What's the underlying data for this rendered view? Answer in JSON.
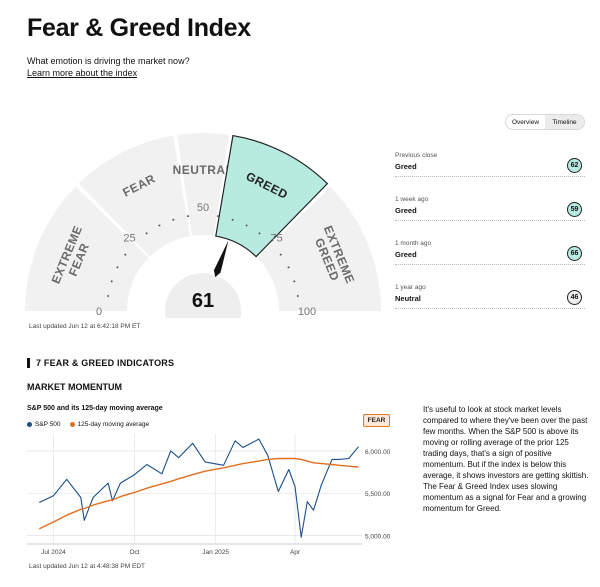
{
  "page": {
    "title": "Fear & Greed Index",
    "subtitle": "What emotion is driving the market now?",
    "learn_more": "Learn more about the index"
  },
  "toggle": {
    "options": [
      "Overview",
      "Timeline"
    ],
    "selected": "Timeline"
  },
  "gauge": {
    "value": 61,
    "segments": [
      {
        "label": [
          "EXTREME",
          "FEAR"
        ],
        "from": 0,
        "to": 25
      },
      {
        "label": [
          "FEAR"
        ],
        "from": 25,
        "to": 45
      },
      {
        "label": [
          "NEUTRAL"
        ],
        "from": 45,
        "to": 55
      },
      {
        "label": [
          "GREED"
        ],
        "from": 55,
        "to": 75
      },
      {
        "label": [
          "EXTREME",
          "GREED"
        ],
        "from": 75,
        "to": 100
      }
    ],
    "active_segment": "GREED",
    "ticks": [
      "0",
      "25",
      "50",
      "75",
      "100"
    ],
    "last_updated": "Last updated Jun 12 at 6:42:18 PM ET",
    "colors": {
      "segment": "#f1f1f1",
      "active": "#b8ebe0",
      "active_border": "#222222",
      "needle": "#111111"
    }
  },
  "history": [
    {
      "period": "Previous close",
      "rating": "Greed",
      "score": "62",
      "badge_color": "#b8ebe0"
    },
    {
      "period": "1 week ago",
      "rating": "Greed",
      "score": "59",
      "badge_color": "#b8ebe0"
    },
    {
      "period": "1 month ago",
      "rating": "Greed",
      "score": "66",
      "badge_color": "#b8ebe0"
    },
    {
      "period": "1 year ago",
      "rating": "Neutral",
      "score": "46",
      "badge_color": "#eeeeee"
    }
  ],
  "indicators": {
    "section_title": "7 FEAR & GREED INDICATORS"
  },
  "market_momentum": {
    "title": "MARKET MOMENTUM",
    "chart_title": "S&P 500 and its 125-day moving average",
    "rating_tag": "FEAR",
    "last_updated": "Last updated Jun 12 at 4:48:38 PM EDT",
    "description": "It's useful to look at stock market levels compared to where they've been over the past few months. When the S&P 500 is above its moving or rolling average of the prior 125 trading days, that's a sign of positive momentum. But if the index is below this average, it shows investors are getting skittish. The Fear & Greed Index uses slowing momentum as a signal for Fear and a growing momentum for Greed."
  },
  "chart_data": {
    "type": "line",
    "x": [
      "2024-06-15",
      "2024-07-01",
      "2024-07-16",
      "2024-08-01",
      "2024-08-05",
      "2024-08-15",
      "2024-09-01",
      "2024-09-06",
      "2024-09-15",
      "2024-10-01",
      "2024-10-15",
      "2024-11-01",
      "2024-11-11",
      "2024-11-20",
      "2024-12-06",
      "2024-12-20",
      "2025-01-10",
      "2025-01-23",
      "2025-02-01",
      "2025-02-19",
      "2025-03-01",
      "2025-03-13",
      "2025-03-25",
      "2025-04-01",
      "2025-04-08",
      "2025-04-15",
      "2025-04-22",
      "2025-05-01",
      "2025-05-13",
      "2025-05-21",
      "2025-06-01",
      "2025-06-12"
    ],
    "series": [
      {
        "name": "S&P 500",
        "color": "#1a4f8c",
        "values": [
          5390,
          5470,
          5665,
          5450,
          5180,
          5450,
          5620,
          5410,
          5620,
          5720,
          5840,
          5730,
          6000,
          5920,
          6090,
          5870,
          5830,
          6120,
          6040,
          6140,
          5950,
          5520,
          5780,
          5580,
          4980,
          5400,
          5300,
          5600,
          5900,
          5900,
          5910,
          6050
        ]
      },
      {
        "name": "125-day moving average",
        "color": "#e07020",
        "values": [
          5080,
          5160,
          5240,
          5310,
          5320,
          5360,
          5410,
          5420,
          5460,
          5510,
          5560,
          5610,
          5640,
          5670,
          5720,
          5760,
          5800,
          5830,
          5850,
          5880,
          5900,
          5910,
          5910,
          5910,
          5900,
          5880,
          5860,
          5850,
          5840,
          5830,
          5820,
          5810
        ]
      }
    ],
    "yticks": [
      "5,000.00",
      "5,500.00",
      "6,000.00"
    ],
    "ylim": [
      4900,
      6200
    ],
    "xticks": [
      {
        "label": "Jul 2024",
        "at": "2024-07-01"
      },
      {
        "label": "Oct",
        "at": "2024-10-01"
      },
      {
        "label": "Jan 2025",
        "at": "2025-01-01"
      },
      {
        "label": "Apr",
        "at": "2025-04-01"
      }
    ],
    "xlim": [
      "2024-06-01",
      "2025-06-16"
    ],
    "grid": true,
    "legend": "top-left"
  }
}
